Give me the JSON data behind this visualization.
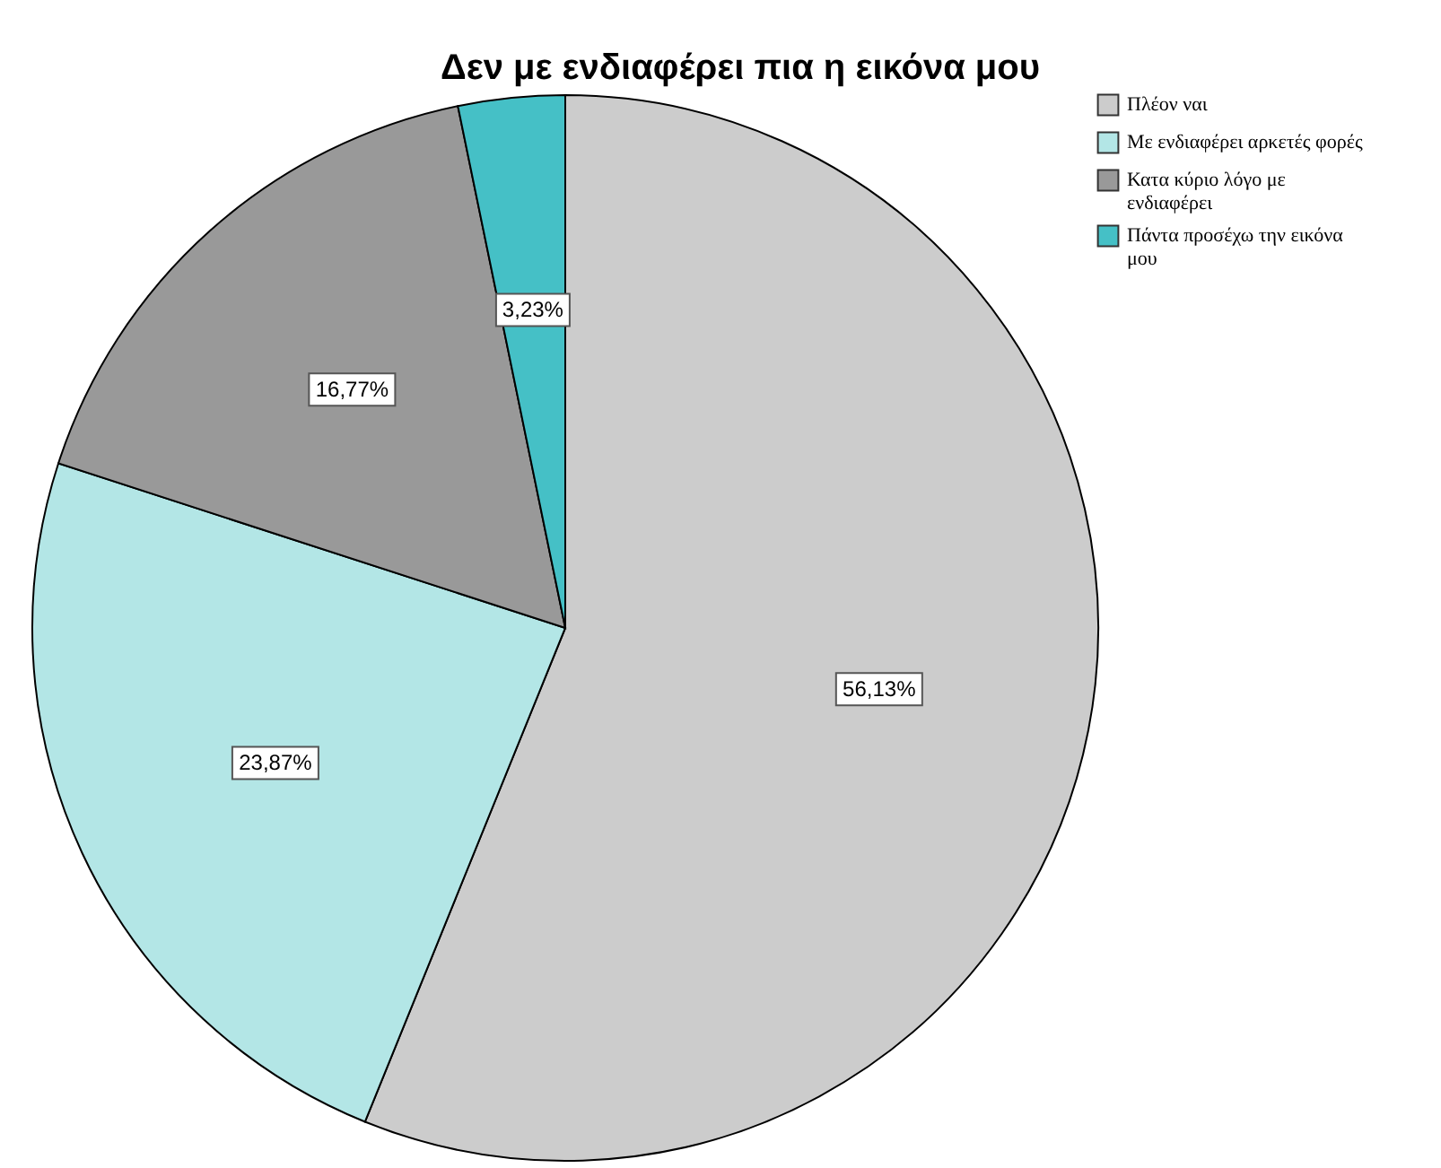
{
  "chart_data": {
    "type": "pie",
    "title": "Δεν με ενδιαφέρει πια η εικόνα μου",
    "categories": [
      "Πλέον ναι",
      "Με ενδιαφέρει αρκετές φορές",
      "Κατα κύριο λόγο με ενδιαφέρει",
      "Πάντα προσέχω την εικόνα μου"
    ],
    "values": [
      56.13,
      23.87,
      16.77,
      3.23
    ],
    "colors": [
      "#cccccc",
      "#b3e6e6",
      "#999999",
      "#45c0c6"
    ],
    "value_labels": [
      "56,13%",
      "23,87%",
      "16,77%",
      "3,23%"
    ],
    "legend": "top right"
  }
}
